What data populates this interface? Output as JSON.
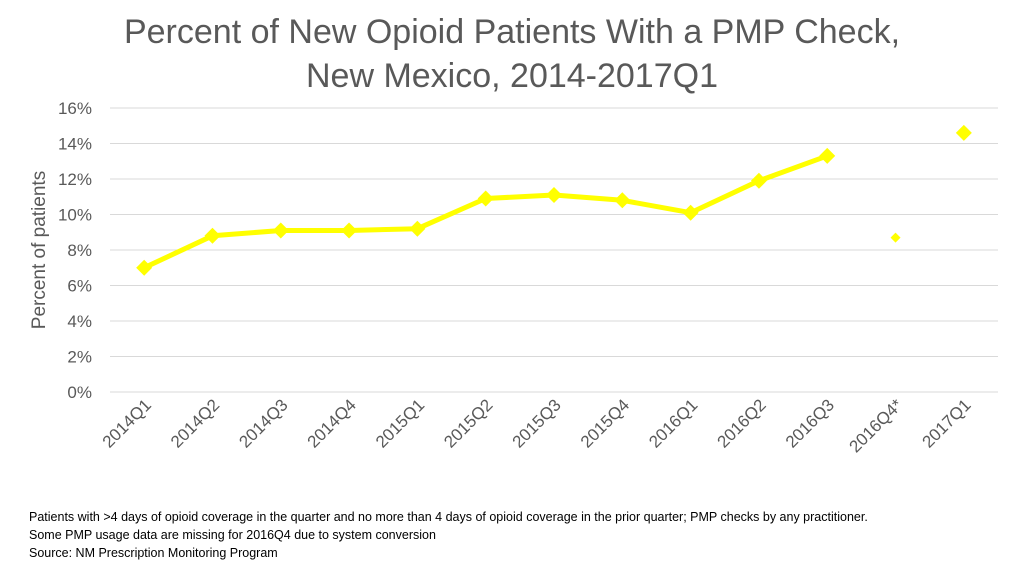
{
  "chart_data": {
    "type": "line",
    "title_line1": "Percent of New Opioid Patients With a PMP Check,",
    "title_line2": "New Mexico, 2014-2017Q1",
    "xlabel": "",
    "ylabel": "Percent of patients",
    "ylim": [
      0,
      16
    ],
    "yticks": [
      "0%",
      "2%",
      "4%",
      "6%",
      "8%",
      "10%",
      "12%",
      "14%",
      "16%"
    ],
    "categories": [
      "2014Q1",
      "2014Q2",
      "2014Q3",
      "2014Q4",
      "2015Q1",
      "2015Q2",
      "2015Q3",
      "2015Q4",
      "2016Q1",
      "2016Q2",
      "2016Q3",
      "2016Q4*",
      "2017Q1"
    ],
    "values": [
      7.0,
      8.8,
      9.1,
      9.1,
      9.2,
      10.9,
      11.1,
      10.8,
      10.1,
      11.9,
      13.3,
      8.7,
      14.6
    ],
    "connected_through_index": 10,
    "series_color": "#FFFF00",
    "grid": true,
    "legend": "none"
  },
  "footnotes": {
    "line1": "Patients with >4 days of opioid coverage in the quarter and no more than 4 days of opioid coverage in the prior quarter; PMP checks by any practitioner.",
    "line2": "Some PMP usage data are missing for 2016Q4 due to system conversion",
    "line3": "Source: NM Prescription Monitoring Program"
  }
}
